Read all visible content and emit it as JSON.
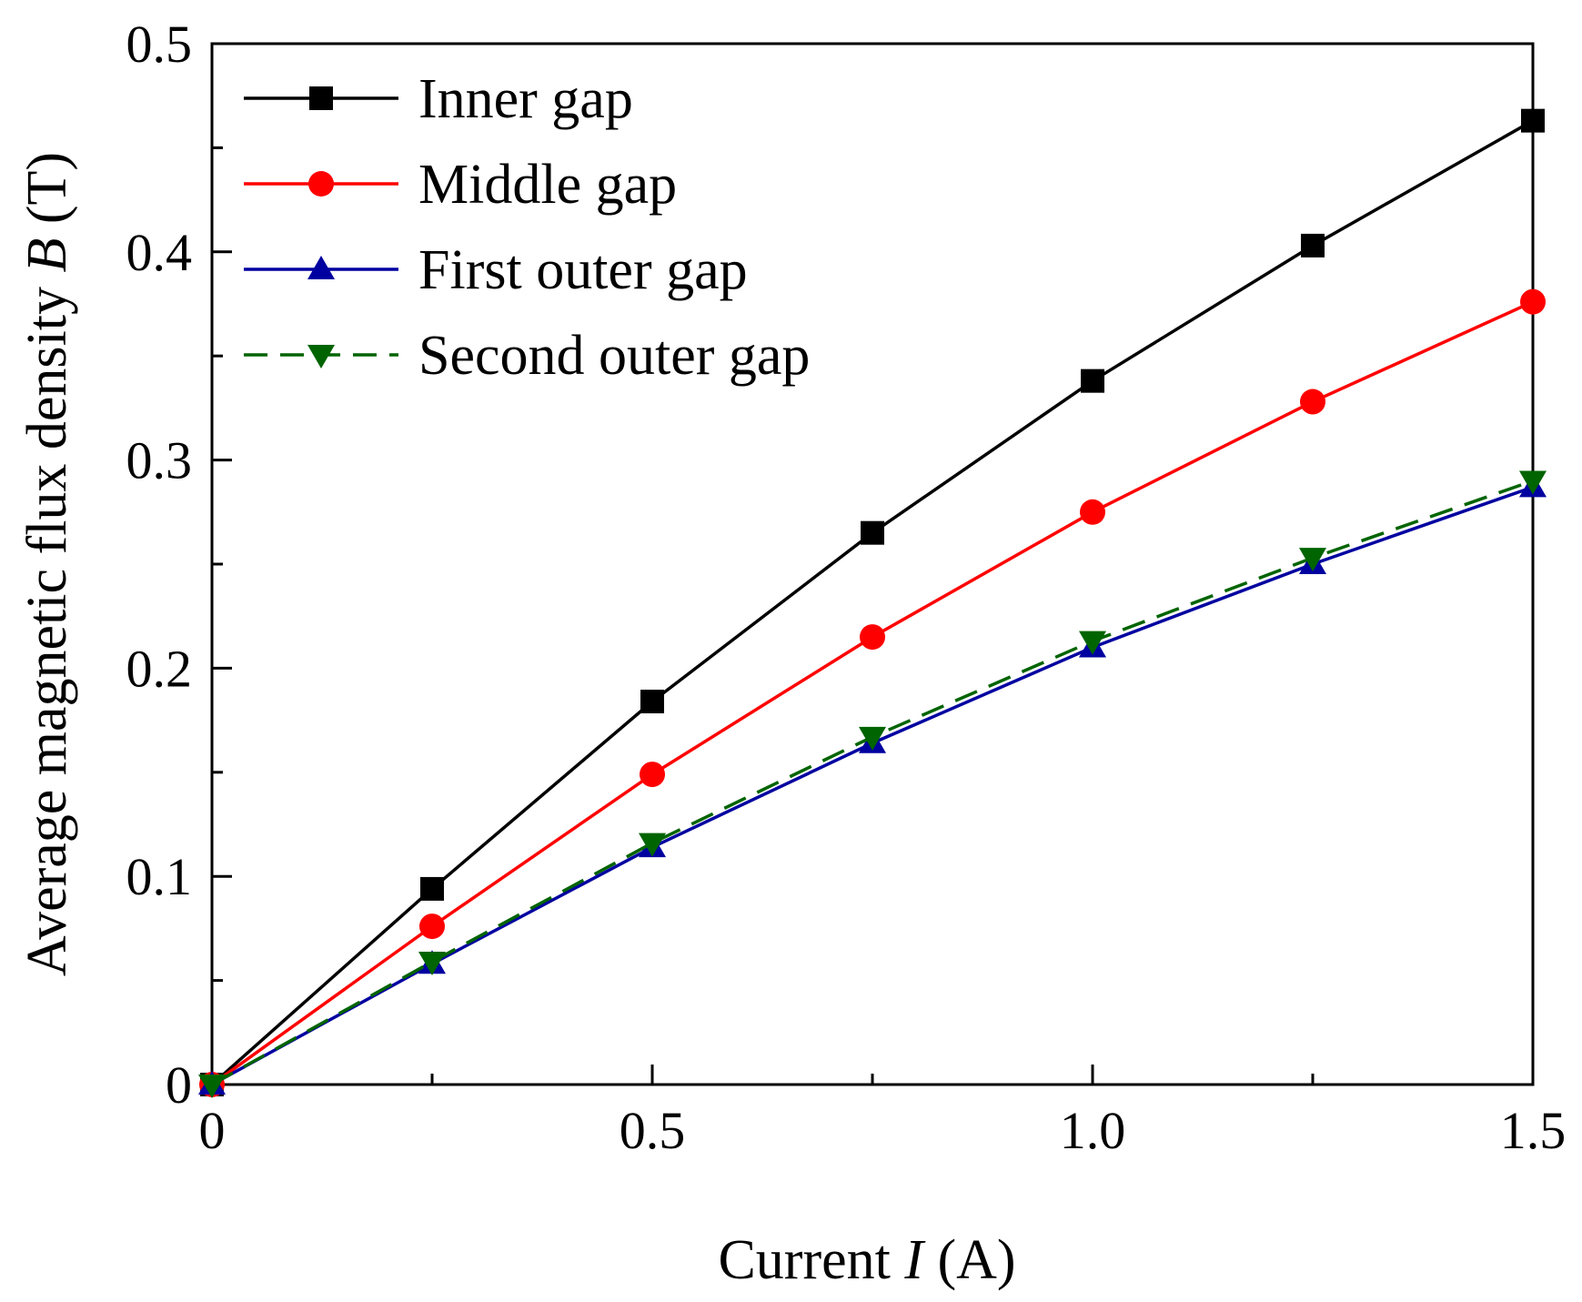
{
  "chart_data": {
    "type": "line",
    "title": "",
    "xlabel": {
      "prefix": "Current ",
      "var": "I",
      "suffix": " (A)"
    },
    "ylabel": {
      "prefix": "Average magnetic flux density ",
      "var": "B",
      "suffix": " (T)"
    },
    "xlim": [
      0,
      1.5
    ],
    "ylim": [
      0,
      0.5
    ],
    "xticks": [
      {
        "value": 0,
        "label": "0"
      },
      {
        "value": 0.5,
        "label": "0.5"
      },
      {
        "value": 1.0,
        "label": "1.0"
      },
      {
        "value": 1.5,
        "label": "1.5"
      }
    ],
    "xminor": [
      0.25,
      0.75,
      1.25
    ],
    "yticks": [
      {
        "value": 0,
        "label": "0"
      },
      {
        "value": 0.1,
        "label": "0.1"
      },
      {
        "value": 0.2,
        "label": "0.2"
      },
      {
        "value": 0.3,
        "label": "0.3"
      },
      {
        "value": 0.4,
        "label": "0.4"
      },
      {
        "value": 0.5,
        "label": "0.5"
      }
    ],
    "yminor": [
      0.05,
      0.15,
      0.25,
      0.35,
      0.45
    ],
    "grid": false,
    "legend_position": "top-left",
    "x": [
      0,
      0.25,
      0.5,
      0.75,
      1.0,
      1.25,
      1.5
    ],
    "series": [
      {
        "name": "Inner gap",
        "color": "#000000",
        "marker": "square",
        "dash": "solid",
        "values": [
          0,
          0.094,
          0.184,
          0.265,
          0.338,
          0.403,
          0.463
        ]
      },
      {
        "name": "Middle gap",
        "color": "#ff0000",
        "marker": "circle",
        "dash": "solid",
        "values": [
          0,
          0.076,
          0.149,
          0.215,
          0.275,
          0.328,
          0.376
        ]
      },
      {
        "name": "First outer gap",
        "color": "#0000a0",
        "marker": "triangle-up",
        "dash": "solid",
        "values": [
          0,
          0.058,
          0.114,
          0.164,
          0.21,
          0.25,
          0.287
        ]
      },
      {
        "name": "Second outer gap",
        "color": "#006400",
        "marker": "triangle-down",
        "dash": "dashed",
        "values": [
          0,
          0.059,
          0.116,
          0.167,
          0.213,
          0.253,
          0.29
        ]
      }
    ]
  }
}
